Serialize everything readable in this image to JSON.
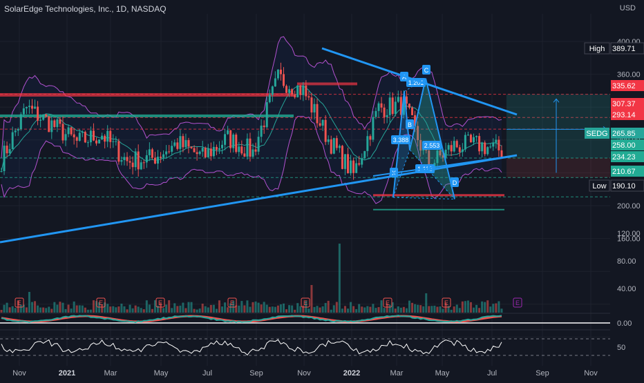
{
  "header": {
    "title": "SolarEdge Technologies, Inc., 1D, NASDAQ",
    "currency": "USD"
  },
  "colors": {
    "background": "#131722",
    "up": "#26a69a",
    "down": "#ef5350",
    "trend": "#2196f3",
    "bollinger": "#b352d1",
    "grid": "#1e222d",
    "axis_text": "#b2b5be",
    "hline_red": "#f23645",
    "hline_green": "#22ab94",
    "rsi": "#ffffff",
    "divider": "#ffffff"
  },
  "price_axis": {
    "ticks": [
      "400.00",
      "360.00",
      "320.00",
      "280.00",
      "240.00",
      "200.00",
      "160.00",
      "120.00",
      "80.00",
      "40.00"
    ],
    "labels": [
      {
        "text": "High",
        "value": "389.71",
        "kind": "high"
      },
      {
        "text": "",
        "value": "335.62",
        "kind": "red"
      },
      {
        "text": "",
        "value": "307.37",
        "kind": "red"
      },
      {
        "text": "",
        "value": "293.14",
        "kind": "red"
      },
      {
        "text": "SEDG",
        "value": "265.85",
        "kind": "last"
      },
      {
        "text": "",
        "value": "258.00",
        "kind": "green"
      },
      {
        "text": "",
        "value": "234.23",
        "kind": "green"
      },
      {
        "text": "",
        "value": "210.67",
        "kind": "green"
      },
      {
        "text": "Low",
        "value": "190.10",
        "kind": "low"
      }
    ]
  },
  "macd_axis": {
    "ticks": [
      "0.00"
    ]
  },
  "rsi_axis": {
    "ticks": [
      "50"
    ]
  },
  "time_axis": {
    "ticks": [
      "Nov",
      "2021",
      "Mar",
      "May",
      "Jul",
      "Sep",
      "Nov",
      "2022",
      "Mar",
      "May",
      "Jul",
      "Sep",
      "Nov"
    ]
  },
  "harmonic": {
    "points": [
      "X",
      "A",
      "B",
      "C",
      "D"
    ],
    "ratios": [
      "1.201",
      "3.388",
      "2.553",
      "1.113"
    ]
  },
  "earnings_marker": "E",
  "chart_data": {
    "type": "candlestick",
    "title": "SolarEdge Technologies, Inc., 1D, NASDAQ",
    "symbol": "SEDG",
    "currency": "USD",
    "last_price": 265.85,
    "high": 389.71,
    "low": 190.1,
    "ylim": [
      0,
      420
    ],
    "horizontal_levels": [
      335.62,
      307.37,
      293.14,
      258.0,
      234.23,
      210.67
    ],
    "x_ticks": [
      "Nov",
      "2021",
      "Mar",
      "May",
      "Jul",
      "Sep",
      "Nov",
      "2022",
      "Mar",
      "May",
      "Jul",
      "Sep",
      "Nov"
    ],
    "pattern_points": {
      "X": 210,
      "A": 339,
      "B": 265,
      "C": 355,
      "D": 208
    },
    "monthly_closes": [
      {
        "month": "2020-11",
        "close": 255
      },
      {
        "month": "2020-12",
        "close": 319
      },
      {
        "month": "2021-01",
        "close": 299
      },
      {
        "month": "2021-02",
        "close": 277
      },
      {
        "month": "2021-03",
        "close": 287
      },
      {
        "month": "2021-04",
        "close": 254
      },
      {
        "month": "2021-05",
        "close": 258
      },
      {
        "month": "2021-06",
        "close": 276
      },
      {
        "month": "2021-07",
        "close": 259
      },
      {
        "month": "2021-08",
        "close": 282
      },
      {
        "month": "2021-09",
        "close": 265
      },
      {
        "month": "2021-10",
        "close": 355
      },
      {
        "month": "2021-11",
        "close": 340
      },
      {
        "month": "2021-12",
        "close": 281
      },
      {
        "month": "2022-01",
        "close": 238
      },
      {
        "month": "2022-02",
        "close": 319
      },
      {
        "month": "2022-03",
        "close": 323
      },
      {
        "month": "2022-04",
        "close": 249
      },
      {
        "month": "2022-05",
        "close": 273
      },
      {
        "month": "2022-06",
        "close": 274
      },
      {
        "month": "2022-07",
        "close": 266
      }
    ],
    "panes": [
      "price",
      "volume",
      "macd",
      "rsi"
    ]
  }
}
